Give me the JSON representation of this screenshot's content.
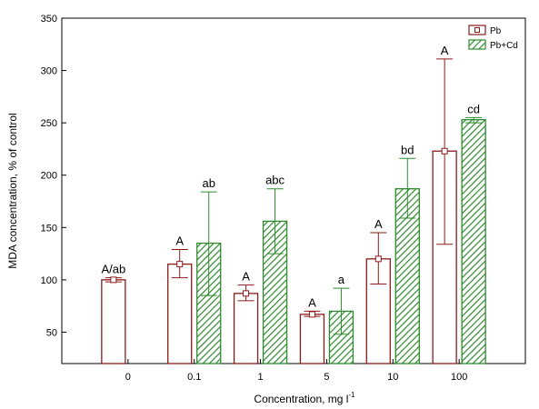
{
  "chart_data": {
    "type": "bar",
    "title": "",
    "xlabel": "Concentration, mg l",
    "xlabel_sup": "-1",
    "ylabel": "MDA concentration, % of control",
    "ylim": [
      20,
      350
    ],
    "yticks": [
      50,
      100,
      150,
      200,
      250,
      300,
      350
    ],
    "categories": [
      "0",
      "0.1",
      "1",
      "5",
      "10",
      "100"
    ],
    "legend_position": "top-right",
    "grid": false,
    "series": [
      {
        "name": "Pb",
        "color": "#8b1a1a",
        "fill": "none",
        "values": [
          100,
          115,
          87,
          67,
          120,
          223
        ],
        "err_low": [
          98,
          102,
          80,
          65,
          96,
          134
        ],
        "err_high": [
          102,
          129,
          95,
          70,
          145,
          311
        ],
        "labels": [
          "A/ab",
          "A",
          "A",
          "A",
          "A",
          "A"
        ]
      },
      {
        "name": "Pb+Cd",
        "color": "#2e8b2e",
        "fill": "hatched",
        "values": [
          null,
          135,
          156,
          70,
          187,
          253
        ],
        "err_low": [
          null,
          85,
          125,
          48,
          159,
          250
        ],
        "err_high": [
          null,
          184,
          187,
          92,
          216,
          255
        ],
        "labels": [
          "",
          "ab",
          "abc",
          "a",
          "bd",
          "cd"
        ]
      }
    ]
  }
}
